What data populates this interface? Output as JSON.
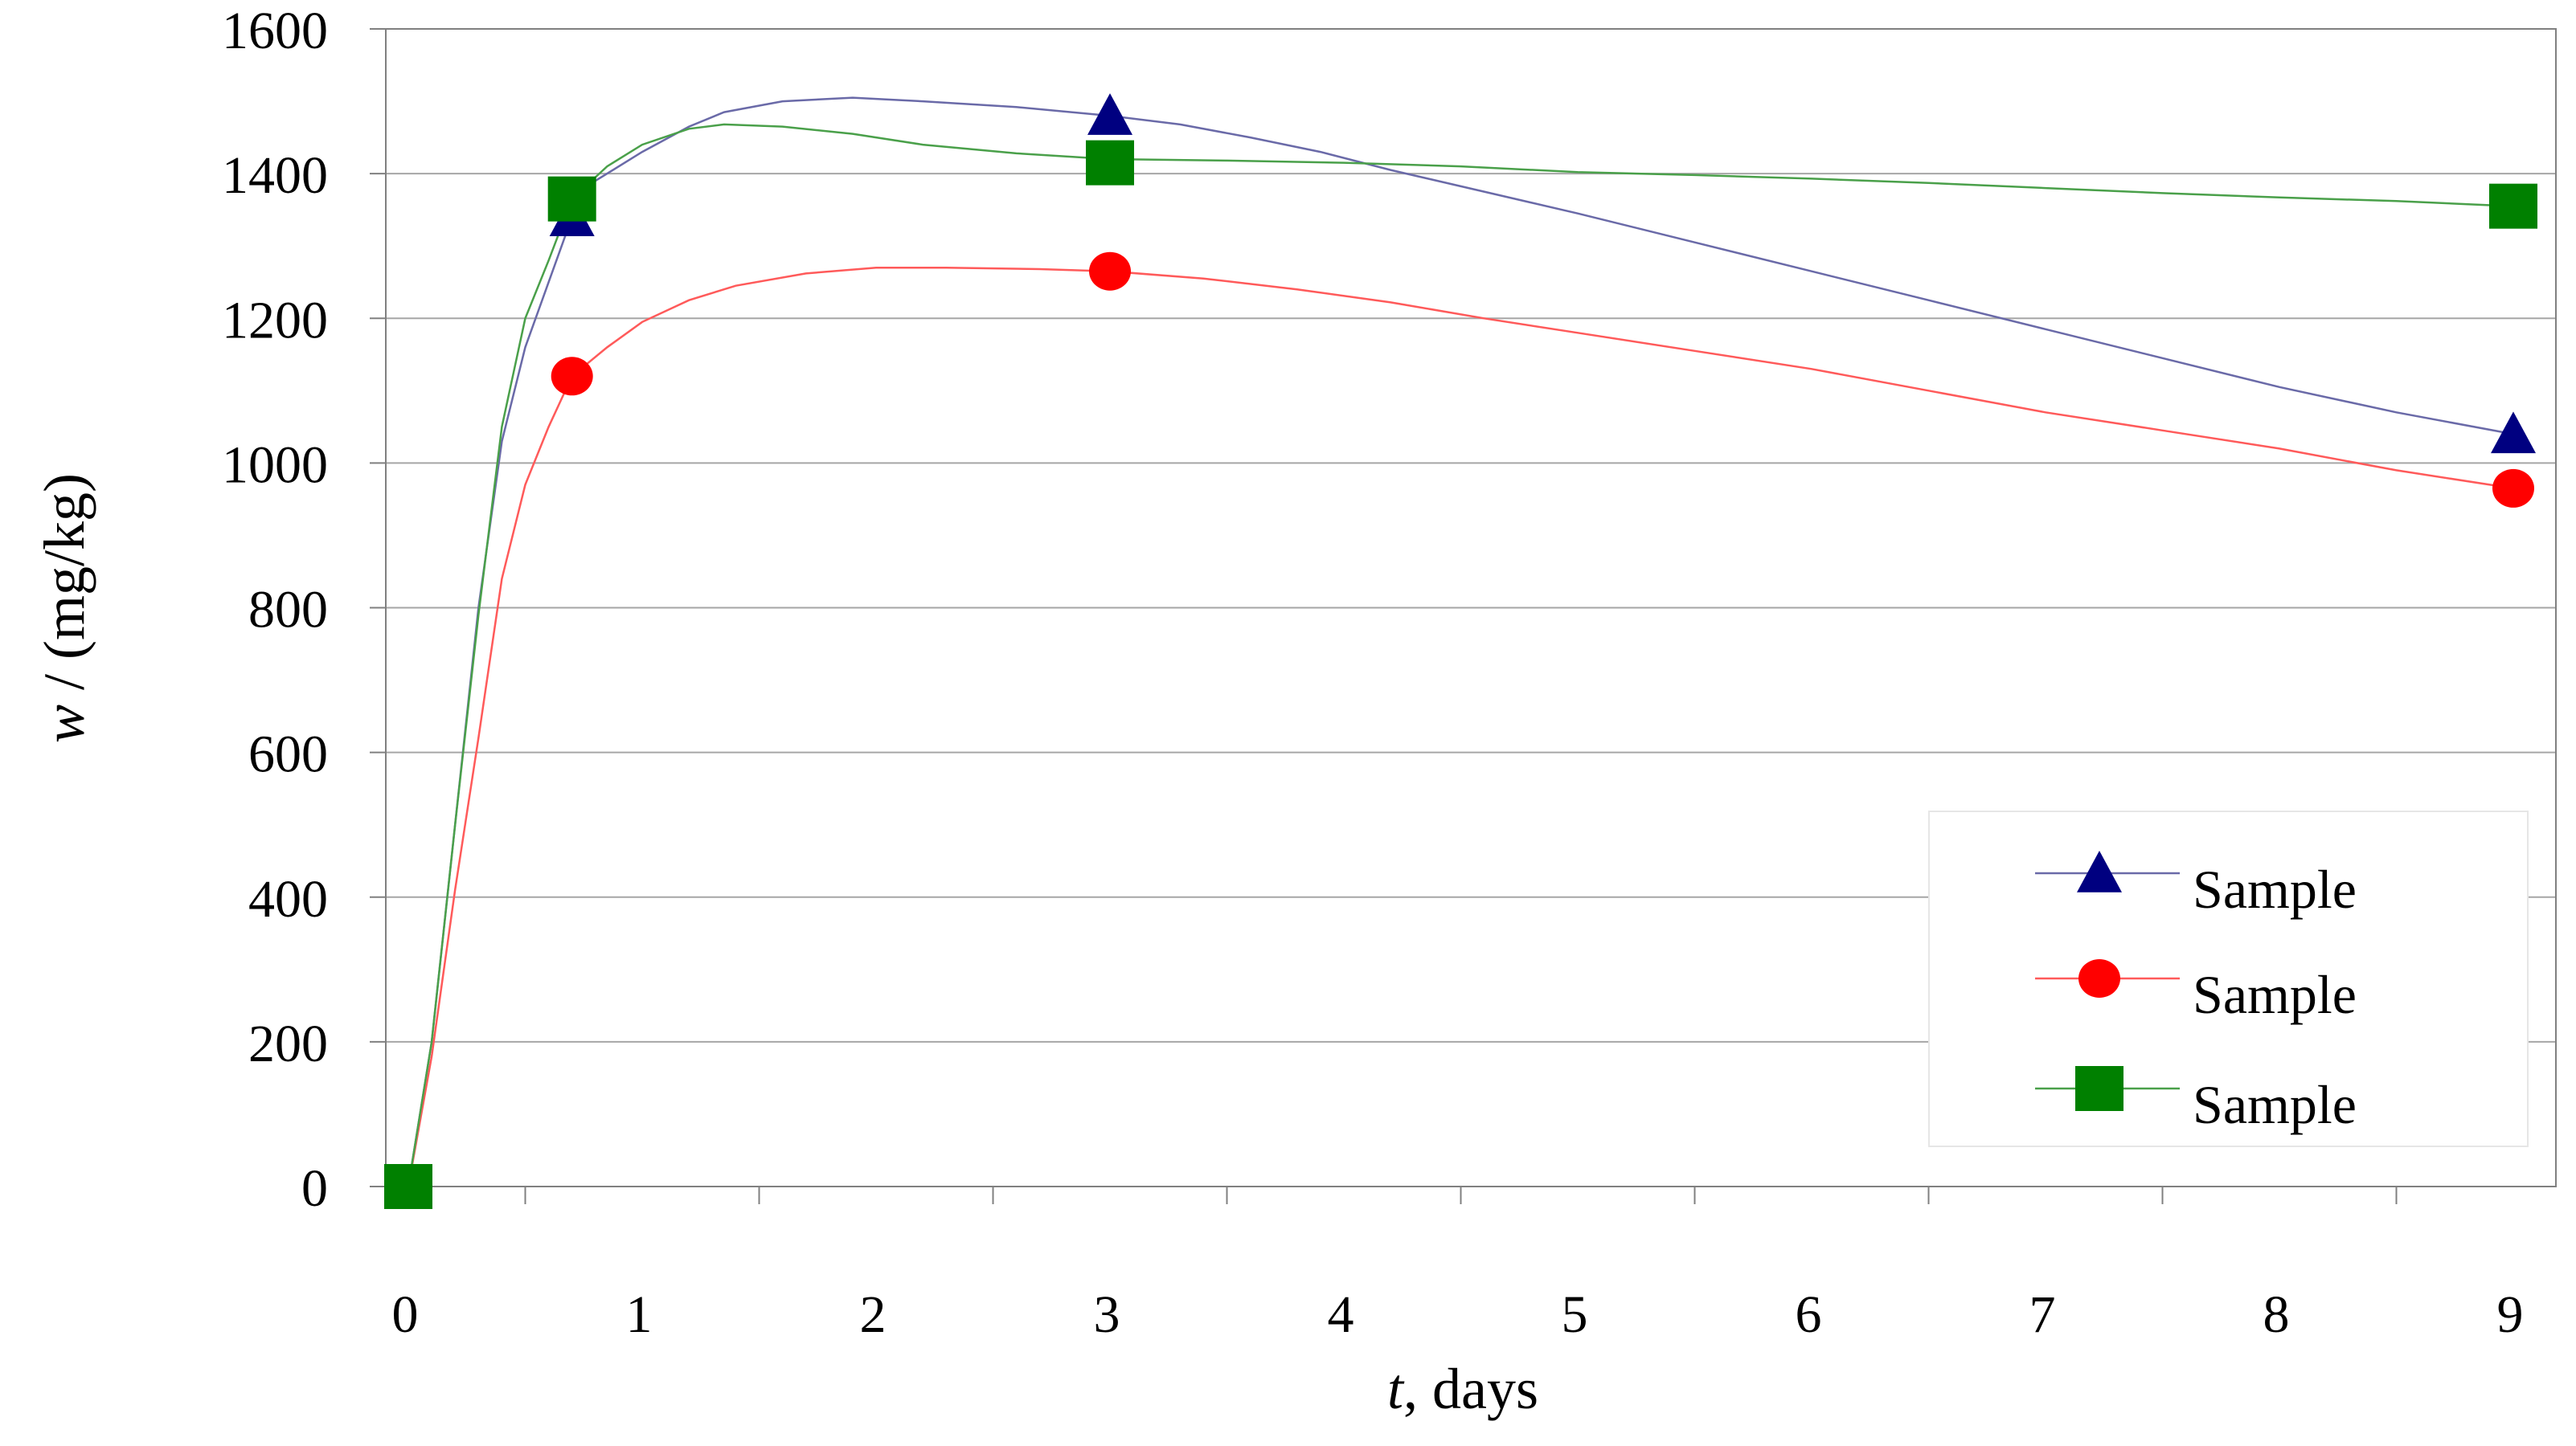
{
  "chart_data": {
    "type": "line",
    "title": "",
    "xlabel": {
      "var": "t",
      "rest": ", days"
    },
    "ylabel": {
      "var": "w",
      "rest": " / (mg/kg)"
    },
    "xlim": [
      0,
      9
    ],
    "ylim": [
      0,
      1600
    ],
    "x_ticks": [
      0,
      1,
      2,
      3,
      4,
      5,
      6,
      7,
      8,
      9
    ],
    "y_ticks": [
      0,
      200,
      400,
      600,
      800,
      1000,
      1200,
      1400,
      1600
    ],
    "grid": "horizontal",
    "legend_position": "bottom-right",
    "series": [
      {
        "name": "Sample",
        "color": "#000080",
        "line_color": "#6a6aa8",
        "marker": "triangle",
        "points": [
          [
            0,
            0
          ],
          [
            0.7,
            1340
          ],
          [
            3,
            1480
          ],
          [
            9,
            1040
          ]
        ],
        "curve": [
          [
            0,
            0
          ],
          [
            0.1,
            200
          ],
          [
            0.2,
            500
          ],
          [
            0.3,
            800
          ],
          [
            0.4,
            1030
          ],
          [
            0.5,
            1160
          ],
          [
            0.6,
            1250
          ],
          [
            0.7,
            1340
          ],
          [
            0.8,
            1390
          ],
          [
            1.0,
            1430
          ],
          [
            1.2,
            1465
          ],
          [
            1.35,
            1485
          ],
          [
            1.6,
            1500
          ],
          [
            1.9,
            1505
          ],
          [
            2.2,
            1500
          ],
          [
            2.6,
            1492
          ],
          [
            3.0,
            1480
          ],
          [
            3.3,
            1468
          ],
          [
            3.6,
            1450
          ],
          [
            3.9,
            1430
          ],
          [
            4.2,
            1405
          ],
          [
            4.6,
            1375
          ],
          [
            5.0,
            1345
          ],
          [
            5.5,
            1305
          ],
          [
            6.0,
            1265
          ],
          [
            6.5,
            1225
          ],
          [
            7.0,
            1185
          ],
          [
            7.5,
            1145
          ],
          [
            8.0,
            1105
          ],
          [
            8.5,
            1070
          ],
          [
            9.0,
            1040
          ]
        ]
      },
      {
        "name": "Sample",
        "color": "#ff0000",
        "line_color": "#ff5a5a",
        "marker": "circle",
        "points": [
          [
            0,
            0
          ],
          [
            0.7,
            1120
          ],
          [
            3,
            1265
          ],
          [
            9,
            965
          ]
        ],
        "curve": [
          [
            0,
            0
          ],
          [
            0.1,
            180
          ],
          [
            0.2,
            410
          ],
          [
            0.3,
            620
          ],
          [
            0.4,
            840
          ],
          [
            0.5,
            970
          ],
          [
            0.6,
            1050
          ],
          [
            0.7,
            1120
          ],
          [
            0.85,
            1160
          ],
          [
            1.0,
            1195
          ],
          [
            1.2,
            1225
          ],
          [
            1.4,
            1245
          ],
          [
            1.7,
            1262
          ],
          [
            2.0,
            1270
          ],
          [
            2.3,
            1270
          ],
          [
            2.7,
            1268
          ],
          [
            3.0,
            1265
          ],
          [
            3.4,
            1255
          ],
          [
            3.8,
            1240
          ],
          [
            4.2,
            1222
          ],
          [
            4.6,
            1200
          ],
          [
            5.0,
            1180
          ],
          [
            5.5,
            1155
          ],
          [
            6.0,
            1130
          ],
          [
            6.5,
            1100
          ],
          [
            7.0,
            1070
          ],
          [
            7.5,
            1045
          ],
          [
            8.0,
            1020
          ],
          [
            8.5,
            990
          ],
          [
            9.0,
            965
          ]
        ]
      },
      {
        "name": "Sample",
        "color": "#008000",
        "line_color": "#4aa04a",
        "marker": "square",
        "points": [
          [
            0,
            0
          ],
          [
            0.7,
            1365
          ],
          [
            3,
            1415
          ],
          [
            9,
            1355
          ]
        ],
        "curve": [
          [
            0,
            0
          ],
          [
            0.1,
            200
          ],
          [
            0.2,
            500
          ],
          [
            0.3,
            790
          ],
          [
            0.4,
            1050
          ],
          [
            0.5,
            1200
          ],
          [
            0.6,
            1280
          ],
          [
            0.7,
            1365
          ],
          [
            0.85,
            1410
          ],
          [
            1.0,
            1440
          ],
          [
            1.2,
            1462
          ],
          [
            1.35,
            1468
          ],
          [
            1.6,
            1465
          ],
          [
            1.9,
            1455
          ],
          [
            2.2,
            1440
          ],
          [
            2.6,
            1428
          ],
          [
            3.0,
            1420
          ],
          [
            3.5,
            1418
          ],
          [
            4.0,
            1415
          ],
          [
            4.5,
            1410
          ],
          [
            5.0,
            1402
          ],
          [
            5.5,
            1398
          ],
          [
            6.0,
            1393
          ],
          [
            6.5,
            1387
          ],
          [
            7.0,
            1380
          ],
          [
            7.5,
            1373
          ],
          [
            8.0,
            1367
          ],
          [
            8.5,
            1362
          ],
          [
            9.0,
            1355
          ]
        ]
      }
    ]
  }
}
